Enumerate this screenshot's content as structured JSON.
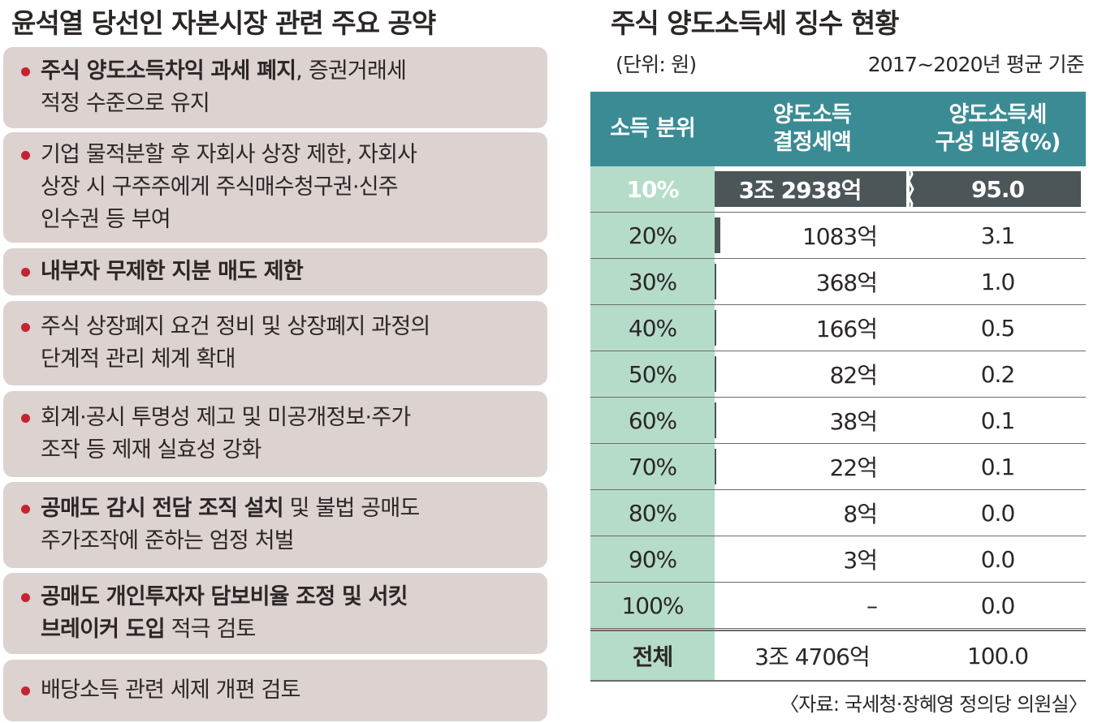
{
  "left_panel": {
    "title": "윤석열 당선인 자본시장 관련 주요 공약",
    "pledges": [
      {
        "lines": [
          {
            "bold": "주식 양도소득차익 과세 폐지",
            "normal": ", 증권거래세"
          },
          {
            "bold": "",
            "normal": "적정 수준으로 유지"
          }
        ]
      },
      {
        "lines": [
          {
            "bold": "",
            "normal": "기업 물적분할 후 자회사 상장 제한, 자회사"
          },
          {
            "bold": "",
            "normal": "상장 시 구주주에게 주식매수청구권·신주"
          },
          {
            "bold": "",
            "normal": "인수권 등 부여"
          }
        ]
      },
      {
        "lines": [
          {
            "bold": "내부자 무제한 지분 매도 제한",
            "normal": ""
          }
        ]
      },
      {
        "lines": [
          {
            "bold": "",
            "normal": "주식 상장폐지 요건 정비 및 상장폐지 과정의"
          },
          {
            "bold": "",
            "normal": "단계적 관리 체계 확대"
          }
        ]
      },
      {
        "lines": [
          {
            "bold": "",
            "normal": "회계·공시 투명성 제고 및 미공개정보·주가"
          },
          {
            "bold": "",
            "normal": "조작 등 제재 실효성 강화"
          }
        ]
      },
      {
        "lines": [
          {
            "bold": "공매도 감시 전담 조직 설치",
            "normal": " 및 불법 공매도"
          },
          {
            "bold": "",
            "normal": "주가조작에 준하는 엄정 처벌"
          }
        ]
      },
      {
        "lines": [
          {
            "bold": "공매도 개인투자자 담보비율 조정 및 서킷",
            "normal": ""
          },
          {
            "bold": "브레이커 도입",
            "normal": " 적극 검토"
          }
        ]
      },
      {
        "lines": [
          {
            "bold": "",
            "normal": "배당소득 관련 세제 개편 검토"
          }
        ]
      }
    ]
  },
  "right_panel": {
    "title": "주식 양도소득세 징수 현황",
    "unit": "(단위: 원)",
    "basis": "2017~2020년 평균 기준",
    "headers": {
      "quantile": "소득 분위",
      "amount_line1": "양도소득",
      "amount_line2": "결정세액",
      "share_line1": "양도소득세",
      "share_line2": "구성 비중(%)"
    },
    "rows": [
      {
        "quantile": "10%",
        "amount": "3조 2938억",
        "share": "95.0",
        "bar_fraction": 1.0
      },
      {
        "quantile": "20%",
        "amount": "1083억",
        "share": "3.1",
        "bar_fraction": 0.033
      },
      {
        "quantile": "30%",
        "amount": "368억",
        "share": "1.0",
        "bar_fraction": 0.011
      },
      {
        "quantile": "40%",
        "amount": "166억",
        "share": "0.5",
        "bar_fraction": 0.005
      },
      {
        "quantile": "50%",
        "amount": "82억",
        "share": "0.2",
        "bar_fraction": 0.0025
      },
      {
        "quantile": "60%",
        "amount": "38억",
        "share": "0.1",
        "bar_fraction": 0.0012
      },
      {
        "quantile": "70%",
        "amount": "22억",
        "share": "0.1",
        "bar_fraction": 0.0007
      },
      {
        "quantile": "80%",
        "amount": "8억",
        "share": "0.0",
        "bar_fraction": 0
      },
      {
        "quantile": "90%",
        "amount": "3억",
        "share": "0.0",
        "bar_fraction": 0
      },
      {
        "quantile": "100%",
        "amount": "–",
        "share": "0.0",
        "bar_fraction": 0
      }
    ],
    "total": {
      "quantile": "전체",
      "amount": "3조 4706억",
      "share": "100.0"
    },
    "source": "〈자료: 국세청·장혜영 정의당 의원실〉"
  },
  "colors": {
    "pledge_background": "#dcd2cf",
    "bullet": "#c4242f",
    "header_teal": "#3a8b94",
    "quantile_column_mint": "#b5dcc9",
    "bar_dark": "#4c5659"
  }
}
